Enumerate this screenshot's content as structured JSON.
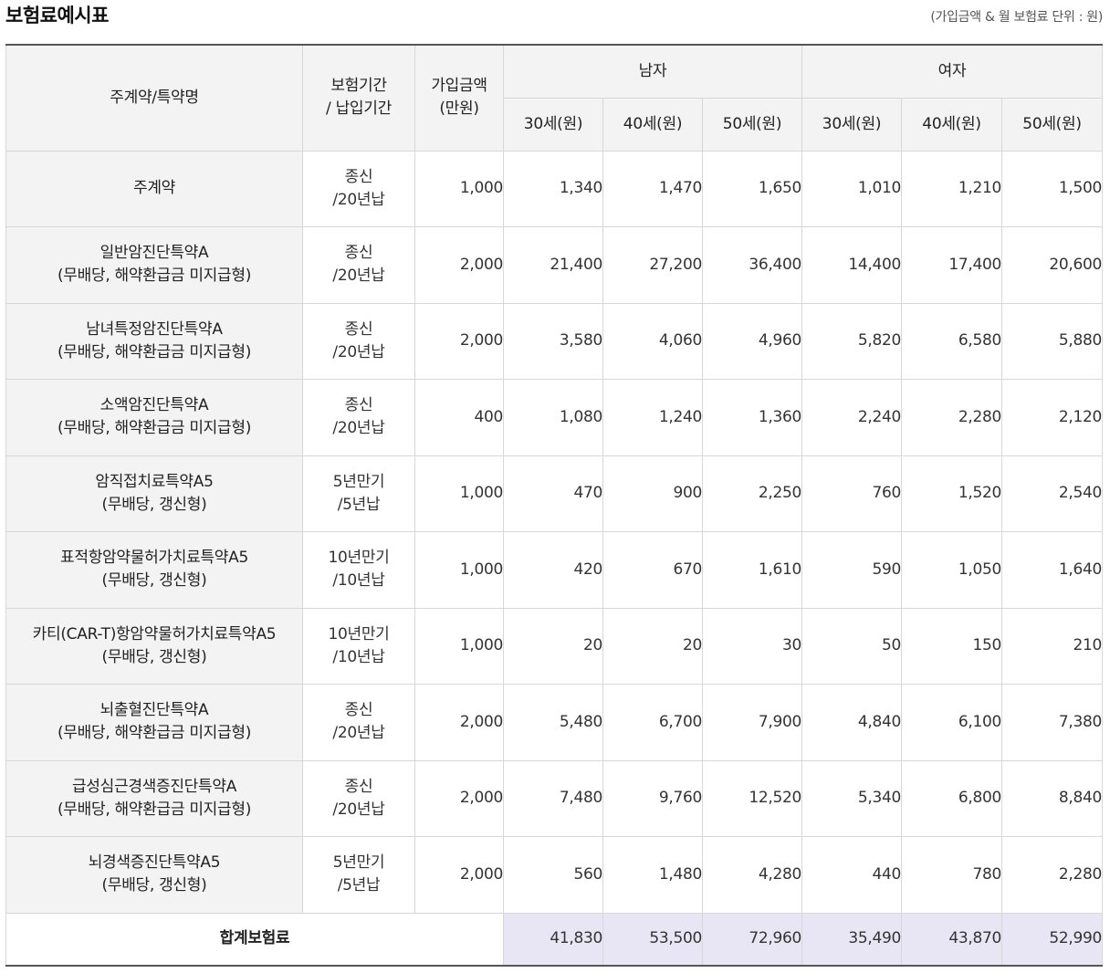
{
  "title": "보험료예시표",
  "unit_note": "(가입금액 & 월 보험료 단위 : 원)",
  "header": {
    "name": "주계약/특약명",
    "period_line1": "보험기간",
    "period_line2": "/ 납입기간",
    "amount_line1": "가입금액",
    "amount_line2": "(만원)",
    "male": "남자",
    "female": "여자",
    "ages": [
      "30세(원)",
      "40세(원)",
      "50세(원)",
      "30세(원)",
      "40세(원)",
      "50세(원)"
    ]
  },
  "rows": [
    {
      "name1": "주계약",
      "name2": "",
      "period1": "종신",
      "period2": "/20년납",
      "amount": "1,000",
      "values": [
        "1,340",
        "1,470",
        "1,650",
        "1,010",
        "1,210",
        "1,500"
      ]
    },
    {
      "name1": "일반암진단특약A",
      "name2": "(무배당, 해약환급금 미지급형)",
      "period1": "종신",
      "period2": "/20년납",
      "amount": "2,000",
      "values": [
        "21,400",
        "27,200",
        "36,400",
        "14,400",
        "17,400",
        "20,600"
      ]
    },
    {
      "name1": "남녀특정암진단특약A",
      "name2": "(무배당, 해약환급금 미지급형)",
      "period1": "종신",
      "period2": "/20년납",
      "amount": "2,000",
      "values": [
        "3,580",
        "4,060",
        "4,960",
        "5,820",
        "6,580",
        "5,880"
      ]
    },
    {
      "name1": "소액암진단특약A",
      "name2": "(무배당, 해약환급금 미지급형)",
      "period1": "종신",
      "period2": "/20년납",
      "amount": "400",
      "values": [
        "1,080",
        "1,240",
        "1,360",
        "2,240",
        "2,280",
        "2,120"
      ]
    },
    {
      "name1": "암직접치료특약A5",
      "name2": "(무배당, 갱신형)",
      "period1": "5년만기",
      "period2": "/5년납",
      "amount": "1,000",
      "values": [
        "470",
        "900",
        "2,250",
        "760",
        "1,520",
        "2,540"
      ]
    },
    {
      "name1": "표적항암약물허가치료특약A5",
      "name2": "(무배당, 갱신형)",
      "period1": "10년만기",
      "period2": "/10년납",
      "amount": "1,000",
      "values": [
        "420",
        "670",
        "1,610",
        "590",
        "1,050",
        "1,640"
      ]
    },
    {
      "name1": "카티(CAR-T)항암약물허가치료특약A5",
      "name2": "(무배당, 갱신형)",
      "period1": "10년만기",
      "period2": "/10년납",
      "amount": "1,000",
      "values": [
        "20",
        "20",
        "30",
        "50",
        "150",
        "210"
      ]
    },
    {
      "name1": "뇌출혈진단특약A",
      "name2": "(무배당, 해약환급금 미지급형)",
      "period1": "종신",
      "period2": "/20년납",
      "amount": "2,000",
      "values": [
        "5,480",
        "6,700",
        "7,900",
        "4,840",
        "6,100",
        "7,380"
      ]
    },
    {
      "name1": "급성심근경색증진단특약A",
      "name2": "(무배당, 해약환급금 미지급형)",
      "period1": "종신",
      "period2": "/20년납",
      "amount": "2,000",
      "values": [
        "7,480",
        "9,760",
        "12,520",
        "5,340",
        "6,800",
        "8,840"
      ]
    },
    {
      "name1": "뇌경색증진단특약A5",
      "name2": "(무배당, 갱신형)",
      "period1": "5년만기",
      "period2": "/5년납",
      "amount": "2,000",
      "values": [
        "560",
        "1,480",
        "4,280",
        "440",
        "780",
        "2,280"
      ]
    }
  ],
  "total": {
    "label": "합계보험료",
    "values": [
      "41,830",
      "53,500",
      "72,960",
      "35,490",
      "43,870",
      "52,990"
    ]
  }
}
